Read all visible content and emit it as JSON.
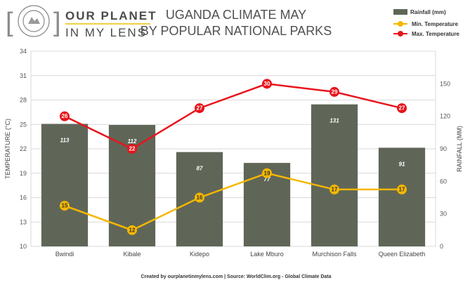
{
  "logo": {
    "line1": "OUR PLANET",
    "line2": "IN MY LENS",
    "ring_text": "OUR PLANET IN MY LENS · TRAVEL & PHOTOGRAPHY"
  },
  "footer": {
    "source": "Created by ourplanetinmylens.com | Source: WorldClim.org - Global Climate Data"
  },
  "colors": {
    "bar": "#5f6658",
    "min": "#f5b700",
    "max": "#e8141b",
    "grid": "#d9d9d9"
  },
  "chart_data": {
    "type": "bar",
    "title_line1": "UGANDA CLIMATE MAY",
    "title_line2": "BY POPULAR NATIONAL PARKS",
    "categories": [
      "Bwindi",
      "Kibale",
      "Kidepo",
      "Lake Mburo",
      "Murchison Falls",
      "Queen Elizabeth"
    ],
    "series": [
      {
        "name": "Rainfall (mm)",
        "type": "bar",
        "axis": "right",
        "values": [
          113,
          112,
          87,
          77,
          131,
          91
        ]
      },
      {
        "name": "Min. Temperature",
        "type": "line",
        "axis": "left",
        "values": [
          15,
          12,
          16,
          19,
          17,
          17
        ]
      },
      {
        "name": "Max. Temperature",
        "type": "line",
        "axis": "left",
        "values": [
          26,
          22,
          27,
          30,
          29,
          27
        ]
      }
    ],
    "ylabel_left": "TEMPERATURE (°C)",
    "ylabel_right": "RAINFALL (MM)",
    "ylim_left": [
      10,
      34
    ],
    "yticks_left": [
      "10",
      "13",
      "16",
      "19",
      "22",
      "25",
      "28",
      "31",
      "34"
    ],
    "ylim_right": [
      0,
      180
    ],
    "yticks_right": [
      "0",
      "30",
      "60",
      "90",
      "120",
      "150"
    ],
    "grid": true,
    "legend_position": "top-right"
  }
}
